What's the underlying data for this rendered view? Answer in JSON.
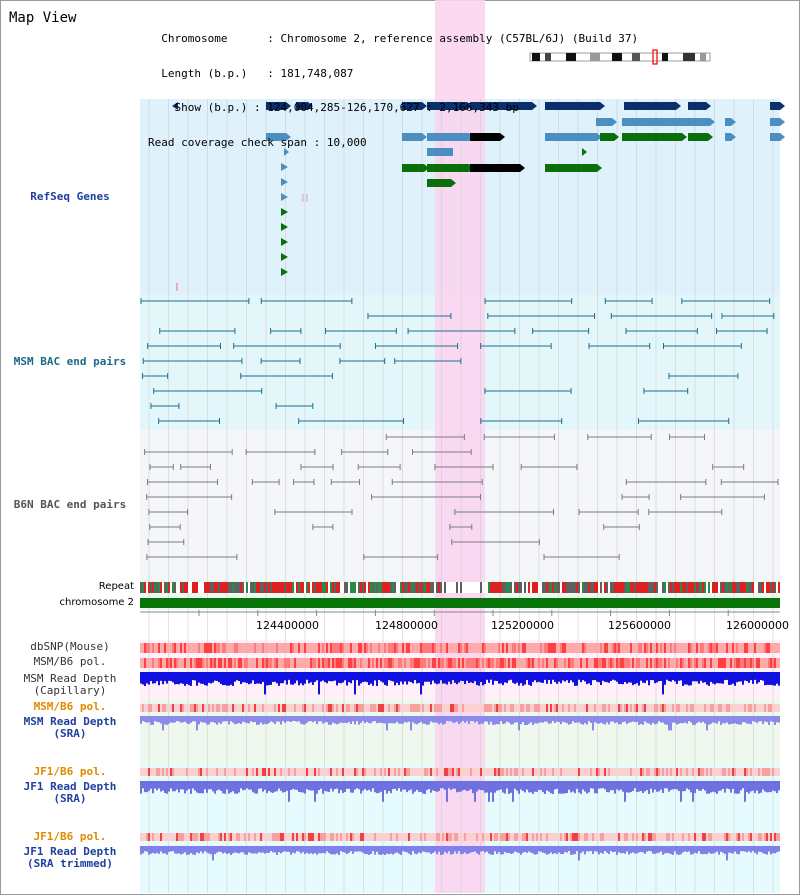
{
  "view_title": "Map View",
  "info": {
    "chromosome_label": "Chromosome",
    "chromosome_value": "Chromosome 2, reference assembly (C57BL/6J) (Build 37)",
    "length_label": "Length (b.p.)",
    "length_value": "181,748,087",
    "show_label": "Show (b.p.)",
    "show_value": "124,004,285-126,170,627 : 2,166,343 bp",
    "span_label": "Read coverage check span",
    "span_value": "10,000"
  },
  "tracks": {
    "refseq": "RefSeq Genes",
    "msm_bac": "MSM BAC end pairs",
    "b6n_bac": "B6N BAC end pairs",
    "repeat": "Repeat",
    "chromosome": "chromosome 2",
    "dbsnp": "dbSNP(Mouse)",
    "msm_b6_pol": "MSM/B6 pol.",
    "msm_read_depth_cap_1": "MSM Read Depth",
    "msm_read_depth_cap_2": "(Capillary)",
    "msm_b6_pol_2": "MSM/B6 pol.",
    "msm_read_depth_sra_1": "MSM Read Depth",
    "msm_read_depth_sra_2": "(SRA)",
    "jf1_b6_pol": "JF1/B6 pol.",
    "jf1_read_depth_sra_1": "JF1 Read Depth",
    "jf1_read_depth_sra_2": "(SRA)",
    "jf1_b6_pol_2": "JF1/B6 pol.",
    "jf1_read_depth_trim_1": "JF1 Read Depth",
    "jf1_read_depth_trim_2": "(SRA trimmed)"
  },
  "axis_ticks": [
    "124400000",
    "124800000",
    "125200000",
    "125600000",
    "126000000"
  ],
  "colors": {
    "refseq_bg": "#dff1fb",
    "msm_bg": "#e3f7fb",
    "b6n_bg": "#f4f6fa",
    "highlight": "#f9d5f0",
    "chrom_green": "#087308",
    "refseq_dark": "#0a2f6b",
    "refseq_mid": "#4a8fc0",
    "refseq_green": "#0a6e0a",
    "msm_line": "#1e6e92",
    "b6n_line": "#7c7c7c",
    "track_label_blue": "#2040a0",
    "track_label_msm": "#1a6a8a",
    "track_label_b6n": "#555555",
    "track_label_orange": "#e08a00",
    "read_depth_blue": "#1010e0"
  }
}
